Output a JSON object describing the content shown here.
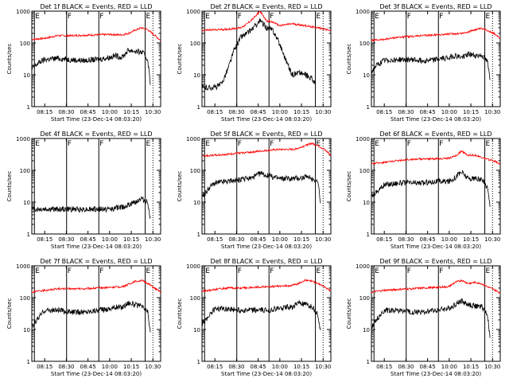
{
  "colors": {
    "events": "#000000",
    "lld": "#ff0000",
    "axis": "#000000",
    "background": "#ffffff"
  },
  "y_axis_label": "Counts/sec",
  "x_axis_label": "Start Time (23-Dec-14 08:03:20)",
  "y_tick_labels": [
    "1",
    "10",
    "100",
    "1000"
  ],
  "x_tick_labels": [
    "08:15",
    "08:30",
    "08:45",
    "10:00",
    "10:15",
    "10:30"
  ],
  "attenuator_marks": [
    {
      "label": "E",
      "position": 0.02
    },
    {
      "label": "F",
      "position": 0.27
    },
    {
      "label": "F",
      "position": 0.52
    },
    {
      "label": "E",
      "position": 0.88
    }
  ],
  "chart_data": [
    {
      "type": "line",
      "title": "Det 1f BLACK = Events, RED = LLD",
      "ylog": true,
      "ylim": [
        1,
        1000
      ],
      "xlabel": "Start Time (23-Dec-14 08:03:20)",
      "ylabel": "Counts/sec",
      "series": [
        {
          "name": "LLD",
          "color": "red",
          "x": [
            0,
            0.1,
            0.2,
            0.3,
            0.4,
            0.5,
            0.6,
            0.7,
            0.75,
            0.8,
            0.85,
            0.9,
            0.95,
            1.0
          ],
          "values": [
            130,
            140,
            170,
            170,
            175,
            180,
            185,
            180,
            200,
            250,
            300,
            260,
            180,
            120
          ]
        },
        {
          "name": "Events",
          "color": "black",
          "x": [
            0,
            0.03,
            0.06,
            0.1,
            0.2,
            0.3,
            0.4,
            0.5,
            0.6,
            0.65,
            0.7,
            0.75,
            0.8,
            0.86,
            0.9,
            0.92
          ],
          "values": [
            15,
            20,
            25,
            30,
            33,
            30,
            28,
            30,
            35,
            40,
            35,
            60,
            55,
            50,
            30,
            5
          ]
        }
      ]
    },
    {
      "type": "line",
      "title": "Det 2f BLACK = Events, RED = LLD",
      "ylog": true,
      "ylim": [
        1,
        1000
      ],
      "xlabel": "Start Time (23-Dec-14 08:03:20)",
      "ylabel": "Counts/sec",
      "series": [
        {
          "name": "LLD",
          "color": "red",
          "x": [
            0,
            0.1,
            0.2,
            0.3,
            0.35,
            0.4,
            0.45,
            0.5,
            0.55,
            0.6,
            0.7,
            0.8,
            0.9,
            1.0
          ],
          "values": [
            250,
            260,
            270,
            300,
            400,
            600,
            1000,
            500,
            450,
            350,
            400,
            350,
            300,
            250
          ]
        },
        {
          "name": "Events",
          "color": "black",
          "x": [
            0,
            0.05,
            0.1,
            0.15,
            0.2,
            0.25,
            0.3,
            0.35,
            0.4,
            0.45,
            0.5,
            0.55,
            0.6,
            0.65,
            0.7,
            0.75,
            0.8,
            0.85,
            0.88
          ],
          "values": [
            4,
            4,
            4,
            5,
            15,
            60,
            150,
            200,
            300,
            500,
            300,
            250,
            100,
            30,
            10,
            12,
            10,
            8,
            5
          ]
        }
      ]
    },
    {
      "type": "line",
      "title": "Det 3f BLACK = Events, RED = LLD",
      "ylog": true,
      "ylim": [
        1,
        1000
      ],
      "xlabel": "Start Time (23-Dec-14 08:03:20)",
      "ylabel": "Counts/sec",
      "series": [
        {
          "name": "LLD",
          "color": "red",
          "x": [
            0,
            0.1,
            0.2,
            0.3,
            0.4,
            0.5,
            0.6,
            0.7,
            0.75,
            0.8,
            0.85,
            0.9,
            0.95,
            1.0
          ],
          "values": [
            120,
            130,
            150,
            160,
            170,
            180,
            190,
            200,
            220,
            260,
            280,
            250,
            200,
            140
          ]
        },
        {
          "name": "Events",
          "color": "black",
          "x": [
            0,
            0.03,
            0.06,
            0.1,
            0.2,
            0.3,
            0.4,
            0.5,
            0.6,
            0.65,
            0.7,
            0.75,
            0.8,
            0.86,
            0.9,
            0.92
          ],
          "values": [
            12,
            18,
            22,
            28,
            30,
            30,
            28,
            30,
            35,
            40,
            35,
            45,
            40,
            40,
            25,
            8
          ]
        }
      ]
    },
    {
      "type": "line",
      "title": "Det 4f BLACK = Events, RED = LLD",
      "ylog": true,
      "ylim": [
        1,
        1000
      ],
      "xlabel": "Start Time (23-Dec-14 08:03:20)",
      "ylabel": "Counts/sec",
      "series": [
        {
          "name": "Events",
          "color": "black",
          "x": [
            0,
            0.1,
            0.2,
            0.3,
            0.4,
            0.5,
            0.6,
            0.7,
            0.75,
            0.8,
            0.85,
            0.9,
            0.92
          ],
          "values": [
            6,
            6,
            6,
            6,
            6,
            6,
            6,
            7,
            8,
            10,
            13,
            10,
            3
          ]
        }
      ]
    },
    {
      "type": "line",
      "title": "Det 5f BLACK = Events, RED = LLD",
      "ylog": true,
      "ylim": [
        1,
        1000
      ],
      "xlabel": "Start Time (23-Dec-14 08:03:20)",
      "ylabel": "Counts/sec",
      "series": [
        {
          "name": "LLD",
          "color": "red",
          "x": [
            0,
            0.1,
            0.2,
            0.3,
            0.4,
            0.5,
            0.6,
            0.7,
            0.75,
            0.8,
            0.85,
            0.9,
            0.95,
            1.0
          ],
          "values": [
            280,
            300,
            320,
            350,
            380,
            420,
            450,
            450,
            500,
            600,
            700,
            600,
            450,
            300
          ]
        },
        {
          "name": "Events",
          "color": "black",
          "x": [
            0,
            0.03,
            0.06,
            0.1,
            0.2,
            0.3,
            0.4,
            0.45,
            0.5,
            0.6,
            0.7,
            0.8,
            0.86,
            0.9,
            0.92
          ],
          "values": [
            15,
            20,
            30,
            40,
            45,
            50,
            60,
            80,
            70,
            55,
            55,
            60,
            55,
            45,
            8
          ]
        }
      ]
    },
    {
      "type": "line",
      "title": "Det 6f BLACK = Events, RED = LLD",
      "ylog": true,
      "ylim": [
        1,
        1000
      ],
      "xlabel": "Start Time (23-Dec-14 08:03:20)",
      "ylabel": "Counts/sec",
      "series": [
        {
          "name": "LLD",
          "color": "red",
          "x": [
            0,
            0.1,
            0.2,
            0.3,
            0.4,
            0.5,
            0.6,
            0.65,
            0.7,
            0.75,
            0.8,
            0.85,
            0.9,
            0.95,
            1.0
          ],
          "values": [
            160,
            180,
            200,
            220,
            230,
            230,
            240,
            280,
            400,
            300,
            300,
            260,
            220,
            200,
            160
          ]
        },
        {
          "name": "Events",
          "color": "black",
          "x": [
            0,
            0.03,
            0.06,
            0.1,
            0.2,
            0.3,
            0.4,
            0.5,
            0.6,
            0.65,
            0.7,
            0.75,
            0.8,
            0.86,
            0.9,
            0.92
          ],
          "values": [
            15,
            20,
            25,
            35,
            40,
            40,
            40,
            45,
            45,
            60,
            90,
            55,
            55,
            50,
            30,
            8
          ]
        }
      ]
    },
    {
      "type": "line",
      "title": "Det 7f BLACK = Events, RED = LLD",
      "ylog": true,
      "ylim": [
        1,
        1000
      ],
      "xlabel": "Start Time (23-Dec-14 08:03:20)",
      "ylabel": "Counts/sec",
      "series": [
        {
          "name": "LLD",
          "color": "red",
          "x": [
            0,
            0.1,
            0.2,
            0.3,
            0.4,
            0.5,
            0.6,
            0.7,
            0.75,
            0.8,
            0.85,
            0.9,
            0.95,
            1.0
          ],
          "values": [
            150,
            170,
            190,
            190,
            190,
            200,
            210,
            220,
            260,
            320,
            350,
            280,
            200,
            150
          ]
        },
        {
          "name": "Events",
          "color": "black",
          "x": [
            0,
            0.03,
            0.06,
            0.1,
            0.2,
            0.3,
            0.4,
            0.5,
            0.6,
            0.65,
            0.7,
            0.75,
            0.8,
            0.86,
            0.9,
            0.92
          ],
          "values": [
            12,
            18,
            25,
            40,
            40,
            35,
            35,
            40,
            45,
            50,
            50,
            70,
            60,
            50,
            35,
            8
          ]
        }
      ]
    },
    {
      "type": "line",
      "title": "Det 8f BLACK = Events, RED = LLD",
      "ylog": true,
      "ylim": [
        1,
        1000
      ],
      "xlabel": "Start Time (23-Dec-14 08:03:20)",
      "ylabel": "Counts/sec",
      "series": [
        {
          "name": "LLD",
          "color": "red",
          "x": [
            0,
            0.1,
            0.2,
            0.3,
            0.4,
            0.5,
            0.6,
            0.7,
            0.75,
            0.8,
            0.85,
            0.9,
            0.95,
            1.0
          ],
          "values": [
            160,
            180,
            200,
            200,
            210,
            220,
            230,
            240,
            280,
            350,
            330,
            280,
            220,
            160
          ]
        },
        {
          "name": "Events",
          "color": "black",
          "x": [
            0,
            0.03,
            0.06,
            0.1,
            0.2,
            0.3,
            0.4,
            0.5,
            0.6,
            0.65,
            0.7,
            0.75,
            0.8,
            0.86,
            0.9,
            0.92
          ],
          "values": [
            15,
            20,
            30,
            45,
            45,
            40,
            40,
            40,
            45,
            50,
            50,
            70,
            60,
            50,
            30,
            8
          ]
        }
      ]
    },
    {
      "type": "line",
      "title": "Det 9f BLACK = Events, RED = LLD",
      "ylog": true,
      "ylim": [
        1,
        1000
      ],
      "xlabel": "Start Time (23-Dec-14 08:03:20)",
      "ylabel": "Counts/sec",
      "series": [
        {
          "name": "LLD",
          "color": "red",
          "x": [
            0,
            0.1,
            0.2,
            0.3,
            0.4,
            0.5,
            0.6,
            0.65,
            0.7,
            0.75,
            0.8,
            0.85,
            0.9,
            0.95,
            1.0
          ],
          "values": [
            150,
            170,
            180,
            190,
            200,
            210,
            220,
            300,
            350,
            280,
            300,
            280,
            220,
            180,
            140
          ]
        },
        {
          "name": "Events",
          "color": "black",
          "x": [
            0,
            0.03,
            0.06,
            0.1,
            0.2,
            0.3,
            0.4,
            0.5,
            0.6,
            0.65,
            0.7,
            0.75,
            0.8,
            0.86,
            0.9,
            0.92
          ],
          "values": [
            12,
            18,
            25,
            40,
            40,
            35,
            35,
            40,
            45,
            60,
            80,
            60,
            55,
            50,
            30,
            6
          ]
        }
      ]
    }
  ]
}
